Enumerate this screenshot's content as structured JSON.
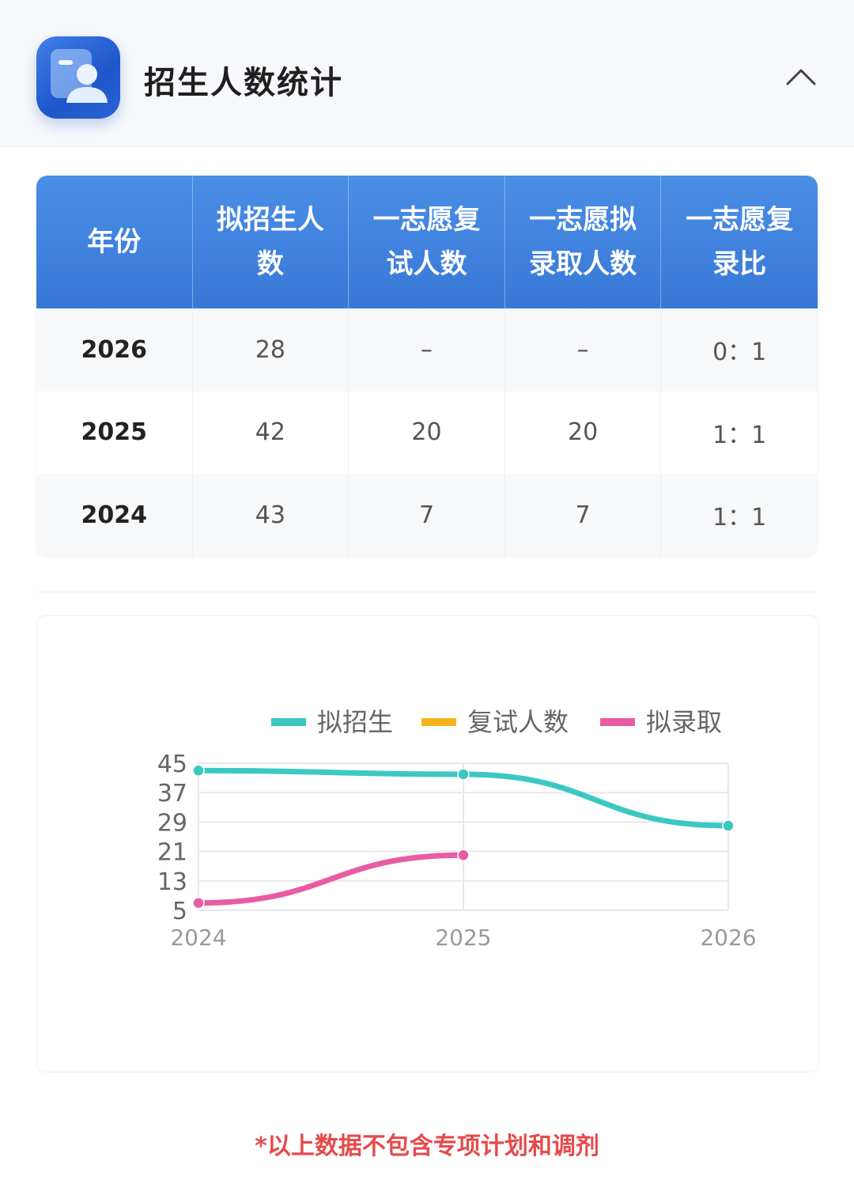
{
  "header": {
    "title": "招生人数统计",
    "icon": "user-card-icon",
    "collapse_icon": "chevron-up-icon"
  },
  "table": {
    "columns": [
      "年份",
      "拟招生人数",
      "一志愿复试人数",
      "一志愿拟录取人数",
      "一志愿复录比"
    ],
    "rows": [
      [
        "2026",
        "28",
        "–",
        "–",
        "0：1"
      ],
      [
        "2025",
        "42",
        "20",
        "20",
        "1：1"
      ],
      [
        "2024",
        "43",
        "7",
        "7",
        "1：1"
      ]
    ]
  },
  "chart_data": {
    "type": "line",
    "categories": [
      "2024",
      "2025",
      "2026"
    ],
    "series": [
      {
        "name": "拟招生",
        "color": "#3cc8c0",
        "values": [
          43,
          42,
          28
        ]
      },
      {
        "name": "复试人数",
        "color": "#f5b21b",
        "values": [
          null,
          null,
          null
        ]
      },
      {
        "name": "拟录取",
        "color": "#e85ca4",
        "values": [
          7,
          20,
          null
        ]
      }
    ],
    "yticks": [
      5,
      13,
      21,
      29,
      37,
      45
    ],
    "ylim": [
      5,
      45
    ],
    "grid": true,
    "legend": "top"
  },
  "footnote": "*以上数据不包含专项计划和调剂"
}
